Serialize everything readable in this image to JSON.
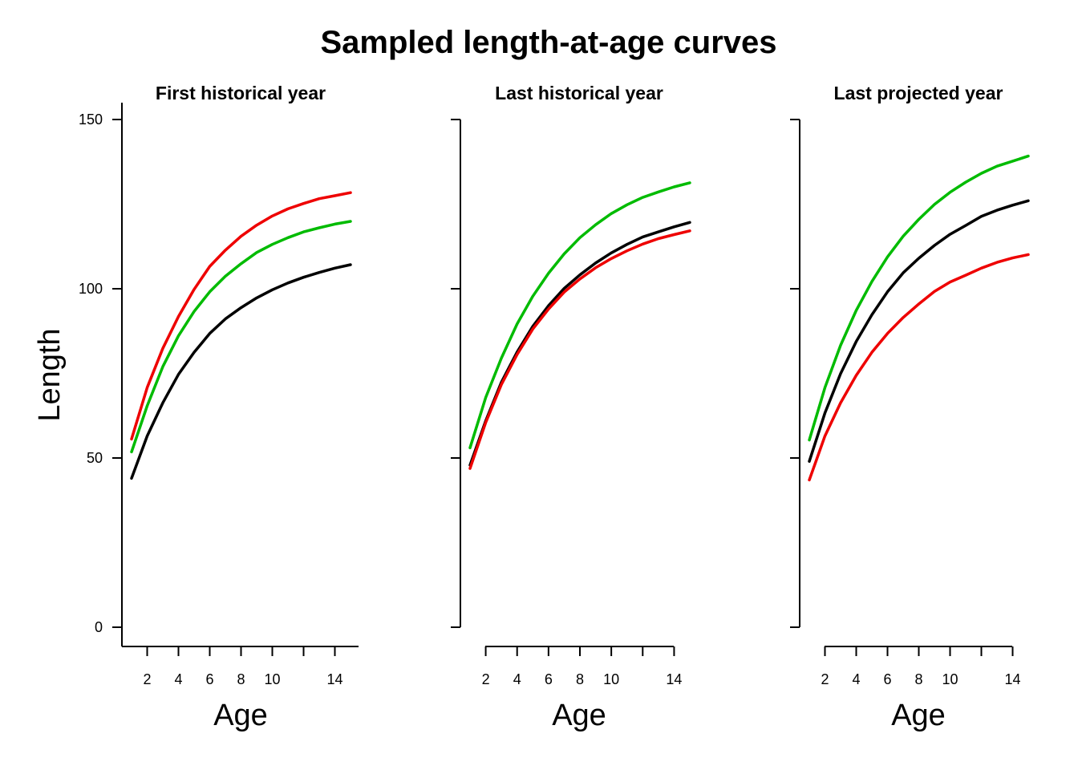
{
  "title": "Sampled length-at-age curves",
  "colors": {
    "black": "#000000",
    "red": "#ee0000",
    "green": "#00bb00"
  },
  "chart_data": [
    {
      "type": "line",
      "title": "First historical year",
      "xlabel": "Age",
      "ylabel": "Length",
      "xlim": [
        1,
        15
      ],
      "ylim": [
        0,
        150
      ],
      "x_ticks": [
        2,
        4,
        6,
        8,
        10,
        12,
        14
      ],
      "x_tick_labels": [
        "2",
        "4",
        "6",
        "8",
        "10",
        "",
        "14"
      ],
      "y_ticks": [
        0,
        50,
        100,
        150
      ],
      "y_tick_labels": [
        "0",
        "50",
        "100",
        "150"
      ],
      "show_y_tick_labels": true,
      "x": [
        1,
        2,
        3,
        4,
        5,
        6,
        7,
        8,
        9,
        10,
        11,
        12,
        13,
        14,
        15
      ],
      "series": [
        {
          "color": "#000000",
          "values": [
            44.0,
            56.5,
            66.3,
            74.7,
            81.2,
            86.8,
            91.1,
            94.4,
            97.3,
            99.7,
            101.7,
            103.4,
            104.8,
            106.1,
            107.1
          ]
        },
        {
          "color": "#ee0000",
          "values": [
            55.6,
            70.8,
            82.4,
            91.8,
            99.8,
            106.6,
            111.4,
            115.5,
            118.8,
            121.5,
            123.6,
            125.2,
            126.6,
            127.5,
            128.4
          ]
        },
        {
          "color": "#00bb00",
          "values": [
            51.8,
            65.4,
            77.0,
            86.1,
            93.3,
            99.1,
            103.7,
            107.4,
            110.7,
            113.1,
            115.1,
            116.8,
            118.0,
            119.1,
            119.9
          ]
        }
      ]
    },
    {
      "type": "line",
      "title": "Last historical year",
      "xlabel": "Age",
      "ylabel": "",
      "xlim": [
        1,
        15
      ],
      "ylim": [
        0,
        150
      ],
      "x_ticks": [
        2,
        4,
        6,
        8,
        10,
        12,
        14
      ],
      "x_tick_labels": [
        "2",
        "4",
        "6",
        "8",
        "10",
        "",
        "14"
      ],
      "y_ticks": [
        0,
        50,
        100,
        150
      ],
      "y_tick_labels": [
        "",
        "",
        "",
        ""
      ],
      "show_y_tick_labels": false,
      "x": [
        1,
        2,
        3,
        4,
        5,
        6,
        7,
        8,
        9,
        10,
        11,
        12,
        13,
        14,
        15
      ],
      "series": [
        {
          "color": "#000000",
          "values": [
            47.9,
            61.0,
            72.4,
            81.3,
            88.9,
            95.0,
            100.1,
            104.1,
            107.6,
            110.6,
            113.1,
            115.3,
            116.8,
            118.3,
            119.6
          ]
        },
        {
          "color": "#ee0000",
          "values": [
            46.9,
            60.5,
            71.7,
            80.6,
            88.1,
            94.0,
            99.0,
            102.9,
            106.2,
            108.9,
            111.2,
            113.2,
            114.8,
            116.0,
            117.1
          ]
        },
        {
          "color": "#00bb00",
          "values": [
            53.0,
            67.9,
            79.5,
            89.6,
            97.8,
            104.6,
            110.3,
            115.1,
            118.9,
            122.2,
            124.8,
            127.0,
            128.6,
            130.1,
            131.3
          ]
        }
      ]
    },
    {
      "type": "line",
      "title": "Last projected year",
      "xlabel": "Age",
      "ylabel": "",
      "xlim": [
        1,
        15
      ],
      "ylim": [
        0,
        150
      ],
      "x_ticks": [
        2,
        4,
        6,
        8,
        10,
        12,
        14
      ],
      "x_tick_labels": [
        "2",
        "4",
        "6",
        "8",
        "10",
        "",
        "14"
      ],
      "y_ticks": [
        0,
        50,
        100,
        150
      ],
      "y_tick_labels": [
        "",
        "",
        "",
        ""
      ],
      "show_y_tick_labels": false,
      "x": [
        1,
        2,
        3,
        4,
        5,
        6,
        7,
        8,
        9,
        10,
        11,
        12,
        13,
        14,
        15
      ],
      "series": [
        {
          "color": "#000000",
          "values": [
            49.0,
            63.3,
            74.9,
            84.4,
            92.3,
            99.1,
            104.7,
            109.0,
            112.8,
            116.1,
            118.7,
            121.4,
            123.2,
            124.7,
            126.0
          ]
        },
        {
          "color": "#ee0000",
          "values": [
            43.5,
            56.5,
            66.3,
            74.4,
            81.2,
            86.8,
            91.5,
            95.5,
            99.2,
            102.0,
            104.0,
            106.1,
            107.8,
            109.1,
            110.1
          ]
        },
        {
          "color": "#00bb00",
          "values": [
            55.3,
            70.8,
            83.3,
            93.6,
            102.1,
            109.4,
            115.5,
            120.5,
            124.9,
            128.5,
            131.5,
            134.1,
            136.2,
            137.7,
            139.2
          ]
        }
      ]
    }
  ]
}
